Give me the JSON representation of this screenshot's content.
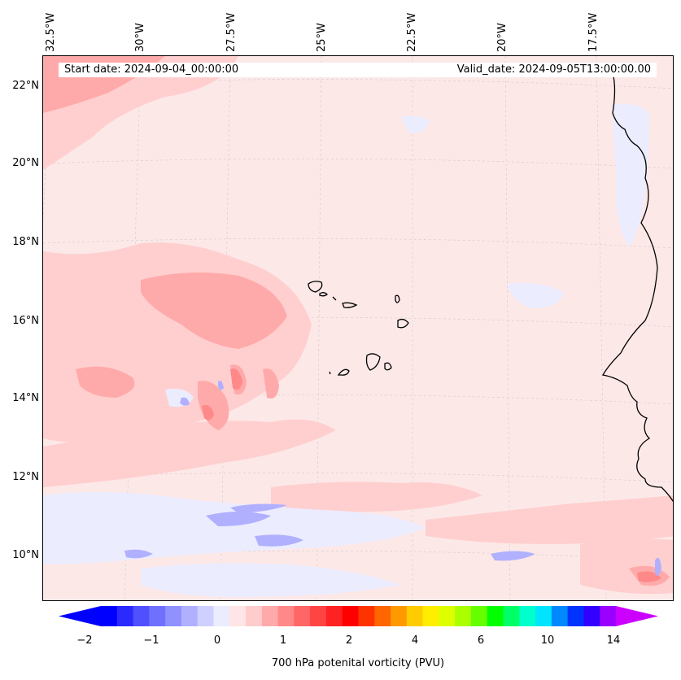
{
  "info": {
    "start_date": "Start date: 2024-09-04_00:00:00",
    "valid_date": "Valid_date: 2024-09-05T13:00:00.00"
  },
  "lon_labels": [
    "32.5°W",
    "30°W",
    "27.5°W",
    "25°W",
    "22.5°W",
    "20°W",
    "17.5°W"
  ],
  "lat_labels": [
    "22°N",
    "20°N",
    "18°N",
    "16°N",
    "14°N",
    "12°N",
    "10°N"
  ],
  "colorbar": {
    "ticks": [
      "−2",
      "−1",
      "0",
      "1",
      "2",
      "4",
      "6",
      "10",
      "14"
    ],
    "label": "700 hPa potenital vorticity (PVU)",
    "colors": [
      "#0000ff",
      "#2a2aff",
      "#5050ff",
      "#7070ff",
      "#9090ff",
      "#b0b0ff",
      "#d0d0ff",
      "#ececff",
      "#ffe5e5",
      "#ffcccc",
      "#ffaaaa",
      "#ff8888",
      "#ff6666",
      "#ff4444",
      "#ff2222",
      "#ff0000",
      "#ff3300",
      "#ff6600",
      "#ff9900",
      "#ffcc00",
      "#ffee00",
      "#ddff00",
      "#aaff00",
      "#66ff00",
      "#00ff00",
      "#00ff66",
      "#00ffcc",
      "#00e5ff",
      "#0088ff",
      "#0033ff",
      "#3300ff",
      "#9900ff"
    ],
    "under_color": "#0000ff",
    "over_color": "#cc00ff"
  }
}
